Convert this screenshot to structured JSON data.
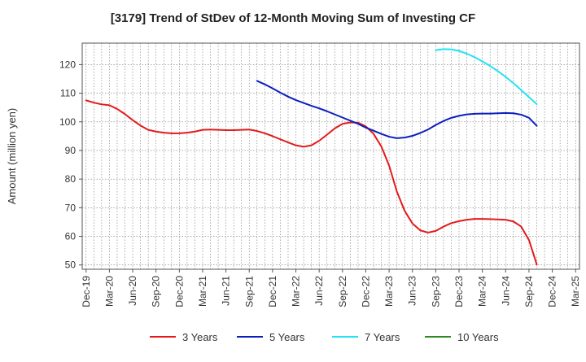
{
  "chart_data": {
    "type": "line",
    "title": "[3179]  Trend of StDev of 12-Month Moving Sum of Investing CF",
    "xlabel": "",
    "ylabel": "Amount (million yen)",
    "x_range": [
      "2019-12",
      "2025-03"
    ],
    "ylim": [
      48.5,
      127.5
    ],
    "yticks": [
      50,
      60,
      70,
      80,
      90,
      100,
      110,
      120
    ],
    "xticks": [
      "Dec-19",
      "Mar-20",
      "Jun-20",
      "Sep-20",
      "Dec-20",
      "Mar-21",
      "Jun-21",
      "Sep-21",
      "Dec-21",
      "Mar-22",
      "Jun-22",
      "Sep-22",
      "Dec-22",
      "Mar-23",
      "Jun-23",
      "Sep-23",
      "Dec-23",
      "Mar-24",
      "Jun-24",
      "Sep-24",
      "Dec-24",
      "Mar-25"
    ],
    "grid": true,
    "legend_position": "bottom",
    "series": [
      {
        "name": "3 Years",
        "color": "#e31a1c",
        "points": [
          [
            "2019-12",
            107.5
          ],
          [
            "2020-01",
            106.7
          ],
          [
            "2020-02",
            106.1
          ],
          [
            "2020-03",
            105.8
          ],
          [
            "2020-04",
            104.5
          ],
          [
            "2020-05",
            102.7
          ],
          [
            "2020-06",
            100.6
          ],
          [
            "2020-07",
            98.7
          ],
          [
            "2020-08",
            97.2
          ],
          [
            "2020-09",
            96.6
          ],
          [
            "2020-10",
            96.2
          ],
          [
            "2020-11",
            96.0
          ],
          [
            "2020-12",
            96.0
          ],
          [
            "2021-01",
            96.2
          ],
          [
            "2021-02",
            96.6
          ],
          [
            "2021-03",
            97.2
          ],
          [
            "2021-04",
            97.3
          ],
          [
            "2021-05",
            97.2
          ],
          [
            "2021-06",
            97.1
          ],
          [
            "2021-07",
            97.1
          ],
          [
            "2021-08",
            97.2
          ],
          [
            "2021-09",
            97.3
          ],
          [
            "2021-10",
            96.8
          ],
          [
            "2021-11",
            96.0
          ],
          [
            "2021-12",
            95.0
          ],
          [
            "2022-01",
            93.9
          ],
          [
            "2022-02",
            92.8
          ],
          [
            "2022-03",
            91.8
          ],
          [
            "2022-04",
            91.3
          ],
          [
            "2022-05",
            91.8
          ],
          [
            "2022-06",
            93.4
          ],
          [
            "2022-07",
            95.5
          ],
          [
            "2022-08",
            97.7
          ],
          [
            "2022-09",
            99.3
          ],
          [
            "2022-10",
            99.8
          ],
          [
            "2022-11",
            99.7
          ],
          [
            "2022-12",
            98.4
          ],
          [
            "2023-01",
            95.8
          ],
          [
            "2023-02",
            91.4
          ],
          [
            "2023-03",
            84.7
          ],
          [
            "2023-04",
            75.6
          ],
          [
            "2023-05",
            68.9
          ],
          [
            "2023-06",
            64.5
          ],
          [
            "2023-07",
            62.1
          ],
          [
            "2023-08",
            61.3
          ],
          [
            "2023-09",
            61.9
          ],
          [
            "2023-10",
            63.4
          ],
          [
            "2023-11",
            64.6
          ],
          [
            "2023-12",
            65.3
          ],
          [
            "2024-01",
            65.8
          ],
          [
            "2024-02",
            66.1
          ],
          [
            "2024-03",
            66.1
          ],
          [
            "2024-04",
            66.0
          ],
          [
            "2024-05",
            65.9
          ],
          [
            "2024-06",
            65.8
          ],
          [
            "2024-07",
            65.2
          ],
          [
            "2024-08",
            63.4
          ],
          [
            "2024-09",
            58.7
          ],
          [
            "2024-10",
            50.2
          ]
        ]
      },
      {
        "name": "5 Years",
        "color": "#0b1fbf",
        "points": [
          [
            "2021-10",
            114.3
          ],
          [
            "2021-11",
            113.1
          ],
          [
            "2021-12",
            111.7
          ],
          [
            "2022-01",
            110.2
          ],
          [
            "2022-02",
            108.8
          ],
          [
            "2022-03",
            107.6
          ],
          [
            "2022-04",
            106.6
          ],
          [
            "2022-05",
            105.6
          ],
          [
            "2022-06",
            104.7
          ],
          [
            "2022-07",
            103.7
          ],
          [
            "2022-08",
            102.6
          ],
          [
            "2022-09",
            101.5
          ],
          [
            "2022-10",
            100.4
          ],
          [
            "2022-11",
            99.3
          ],
          [
            "2022-12",
            98.0
          ],
          [
            "2023-01",
            96.9
          ],
          [
            "2023-02",
            95.8
          ],
          [
            "2023-03",
            94.8
          ],
          [
            "2023-04",
            94.3
          ],
          [
            "2023-05",
            94.5
          ],
          [
            "2023-06",
            95.1
          ],
          [
            "2023-07",
            96.1
          ],
          [
            "2023-08",
            97.3
          ],
          [
            "2023-09",
            98.9
          ],
          [
            "2023-10",
            100.3
          ],
          [
            "2023-11",
            101.4
          ],
          [
            "2023-12",
            102.1
          ],
          [
            "2024-01",
            102.6
          ],
          [
            "2024-02",
            102.8
          ],
          [
            "2024-03",
            102.9
          ],
          [
            "2024-04",
            102.9
          ],
          [
            "2024-05",
            103.0
          ],
          [
            "2024-06",
            103.1
          ],
          [
            "2024-07",
            103.0
          ],
          [
            "2024-08",
            102.5
          ],
          [
            "2024-09",
            101.4
          ],
          [
            "2024-10",
            98.6
          ]
        ]
      },
      {
        "name": "7 Years",
        "color": "#22e3f2",
        "points": [
          [
            "2023-09",
            125.0
          ],
          [
            "2023-10",
            125.4
          ],
          [
            "2023-11",
            125.3
          ],
          [
            "2023-12",
            124.8
          ],
          [
            "2024-01",
            123.8
          ],
          [
            "2024-02",
            122.6
          ],
          [
            "2024-03",
            121.1
          ],
          [
            "2024-04",
            119.5
          ],
          [
            "2024-05",
            117.7
          ],
          [
            "2024-06",
            115.7
          ],
          [
            "2024-07",
            113.5
          ],
          [
            "2024-08",
            111.1
          ],
          [
            "2024-09",
            108.6
          ],
          [
            "2024-10",
            106.2
          ]
        ]
      },
      {
        "name": "10 Years",
        "color": "#2e8b1f",
        "points": []
      }
    ]
  }
}
